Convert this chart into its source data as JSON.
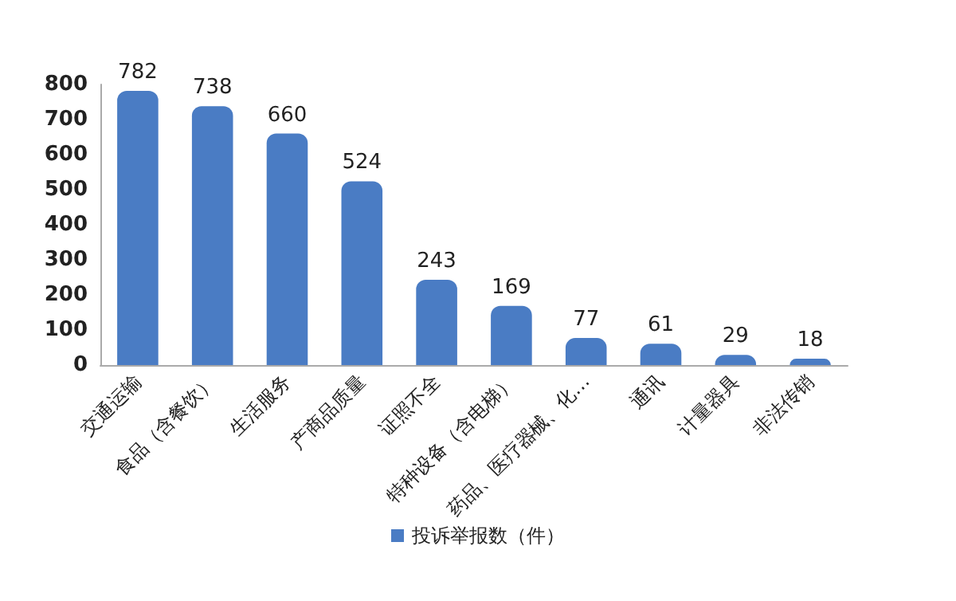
{
  "chart_data": {
    "type": "bar",
    "categories": [
      "交通运输",
      "食品（含餐饮）",
      "生活服务",
      "产商品质量",
      "证照不全",
      "特种设备（含电梯）",
      "药品、医疗器械、化…",
      "通讯",
      "计量器具",
      "非法传销"
    ],
    "series": [
      {
        "name": "投诉举报数（件）",
        "color": "#4a7cc4",
        "values": [
          782,
          738,
          660,
          524,
          243,
          169,
          77,
          61,
          29,
          18
        ]
      }
    ],
    "ylim": [
      0,
      800
    ],
    "yticks": [
      0,
      100,
      200,
      300,
      400,
      500,
      600,
      700,
      800
    ],
    "data_labels": true,
    "grid": false,
    "legend": "bottom"
  }
}
